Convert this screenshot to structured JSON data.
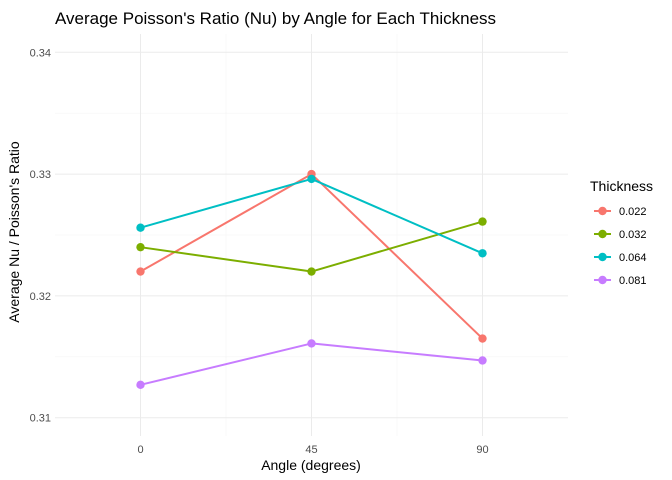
{
  "chart_data": {
    "type": "line",
    "title": "Average Poisson's Ratio (Nu) by Angle for Each Thickness",
    "xlabel": "Angle (degrees)",
    "ylabel": "Average Nu / Poisson's Ratio",
    "x": [
      0,
      45,
      90
    ],
    "x_tick_labels": [
      "0",
      "45",
      "90"
    ],
    "ylim": [
      0.3085,
      0.3415
    ],
    "y_ticks": [
      0.31,
      0.32,
      0.33,
      0.34
    ],
    "y_tick_labels": [
      "0.31",
      "0.32",
      "0.33",
      "0.34"
    ],
    "grid": true,
    "legend": {
      "title": "Thickness",
      "position": "right"
    },
    "series": [
      {
        "name": "0.022",
        "color": "#F8766D",
        "values": [
          0.322,
          0.33,
          0.3165
        ]
      },
      {
        "name": "0.032",
        "color": "#7CAE00",
        "values": [
          0.324,
          0.322,
          0.3261
        ]
      },
      {
        "name": "0.064",
        "color": "#00BFC4",
        "values": [
          0.3256,
          0.3296,
          0.3235
        ]
      },
      {
        "name": "0.081",
        "color": "#C77CFF",
        "values": [
          0.3127,
          0.3161,
          0.3147
        ]
      }
    ]
  }
}
